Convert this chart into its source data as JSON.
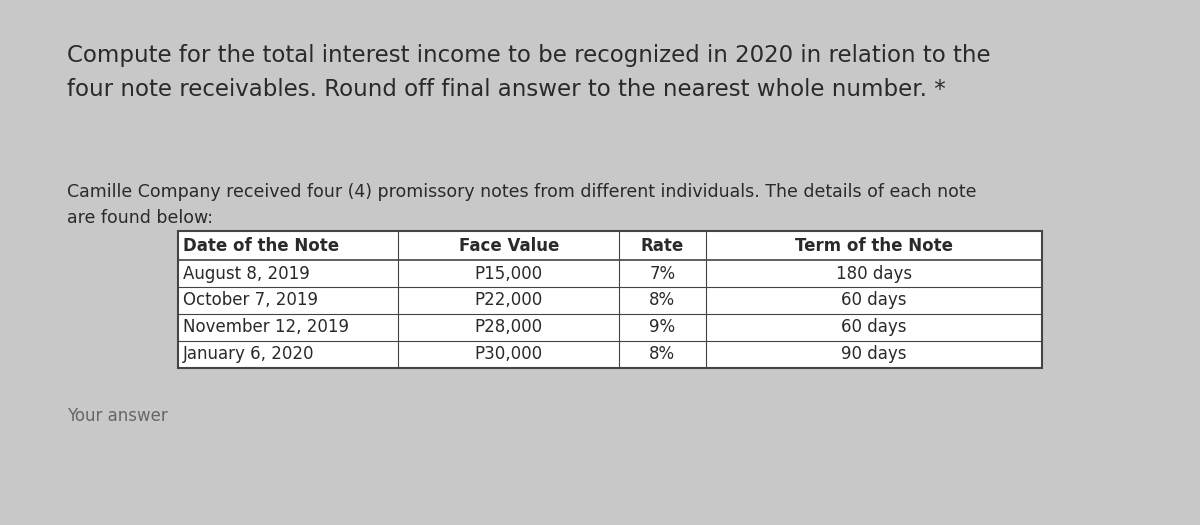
{
  "bg_color": "#c8c8c8",
  "card_color": "#e6e6e6",
  "title_line1": "Compute for the total interest income to be recognized in 2020 in relation to the",
  "title_line2": "four note receivables. Round off final answer to the nearest whole number. *",
  "subtitle_line1": "Camille Company received four (4) promissory notes from different individuals. The details of each note",
  "subtitle_line2": "are found below:",
  "table_headers": [
    "Date of the Note",
    "Face Value",
    "Rate",
    "Term of the Note"
  ],
  "table_rows": [
    [
      "August 8, 2019",
      "P15,000",
      "7%",
      "180 days"
    ],
    [
      "October 7, 2019",
      "P22,000",
      "8%",
      "60 days"
    ],
    [
      "November 12, 2019",
      "P28,000",
      "9%",
      "60 days"
    ],
    [
      "January 6, 2020",
      "P30,000",
      "8%",
      "90 days"
    ]
  ],
  "your_answer_label": "Your answer",
  "title_fontsize": 16.5,
  "subtitle_fontsize": 12.5,
  "table_header_fontsize": 12,
  "table_cell_fontsize": 12,
  "your_answer_fontsize": 12,
  "text_color": "#2a2a2a",
  "your_answer_color": "#666666"
}
